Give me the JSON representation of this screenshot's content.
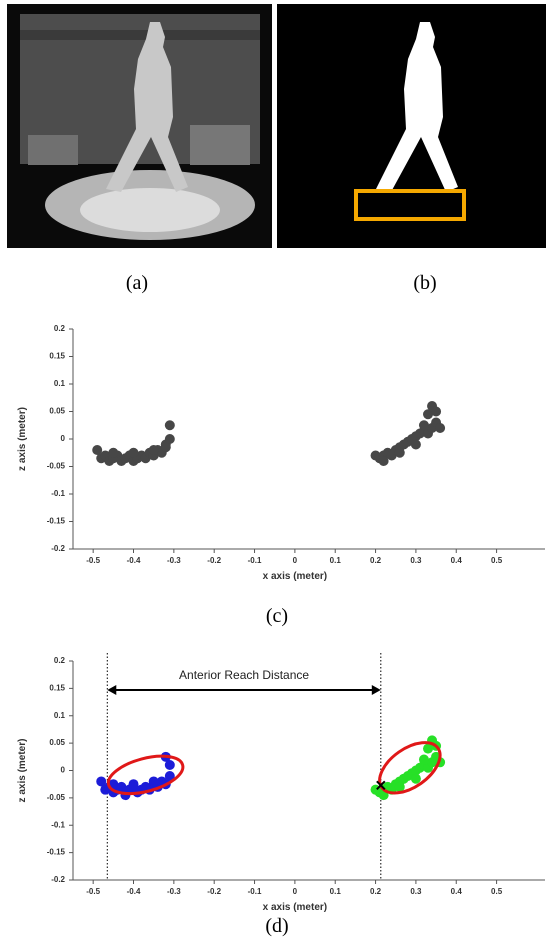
{
  "panels": [
    {
      "caption": "(a)"
    },
    {
      "caption": "(b)"
    }
  ],
  "chart_data": [
    {
      "type": "scatter",
      "caption": "(c)",
      "xlabel": "x axis (meter)",
      "ylabel": "z axis (meter)",
      "xlim": [
        -0.55,
        0.62
      ],
      "ylim": [
        -0.2,
        0.2
      ],
      "xticks": [
        -0.5,
        -0.4,
        -0.3,
        -0.2,
        -0.1,
        0,
        0.1,
        0.2,
        0.3,
        0.4,
        0.5
      ],
      "yticks": [
        0.2,
        0.15,
        0.1,
        0.05,
        0,
        -0.05,
        -0.1,
        -0.15,
        -0.2
      ],
      "grid": false,
      "series": [
        {
          "color": "#474747",
          "x": [
            -0.49,
            -0.48,
            -0.47,
            -0.46,
            -0.45,
            -0.44,
            -0.43,
            -0.42,
            -0.41,
            -0.4,
            -0.39,
            -0.38,
            -0.37,
            -0.36,
            -0.35,
            -0.34,
            -0.33,
            -0.32,
            -0.31,
            -0.31,
            -0.32,
            -0.45,
            -0.4,
            -0.35
          ],
          "values": [
            -0.02,
            -0.035,
            -0.03,
            -0.04,
            -0.035,
            -0.03,
            -0.04,
            -0.035,
            -0.03,
            -0.04,
            -0.035,
            -0.03,
            -0.035,
            -0.025,
            -0.03,
            -0.02,
            -0.025,
            -0.01,
            0,
            0.025,
            -0.015,
            -0.025,
            -0.025,
            -0.02
          ]
        },
        {
          "color": "#474747",
          "x": [
            0.2,
            0.21,
            0.22,
            0.23,
            0.24,
            0.25,
            0.26,
            0.27,
            0.28,
            0.29,
            0.3,
            0.31,
            0.32,
            0.33,
            0.34,
            0.35,
            0.36,
            0.34,
            0.33,
            0.35,
            0.22,
            0.26,
            0.3,
            0.32
          ],
          "values": [
            -0.03,
            -0.035,
            -0.03,
            -0.025,
            -0.03,
            -0.02,
            -0.015,
            -0.01,
            -0.005,
            0,
            0.005,
            0.01,
            0.015,
            0.01,
            0.02,
            0.03,
            0.02,
            0.06,
            0.045,
            0.05,
            -0.04,
            -0.025,
            -0.01,
            0.025
          ]
        }
      ]
    },
    {
      "type": "scatter",
      "caption": "(d)",
      "xlabel": "x axis (meter)",
      "ylabel": "z axis (meter)",
      "xlim": [
        -0.55,
        0.62
      ],
      "ylim": [
        -0.2,
        0.2
      ],
      "xticks": [
        -0.5,
        -0.4,
        -0.3,
        -0.2,
        -0.1,
        0,
        0.1,
        0.2,
        0.3,
        0.4,
        0.5
      ],
      "yticks": [
        0.2,
        0.15,
        0.1,
        0.05,
        0,
        -0.05,
        -0.1,
        -0.15,
        -0.2
      ],
      "grid": false,
      "annotation": "Anterior Reach Distance",
      "vlines": [
        -0.465,
        0.213
      ],
      "series": [
        {
          "color": "#1c1cd8",
          "x": [
            -0.48,
            -0.47,
            -0.46,
            -0.45,
            -0.44,
            -0.43,
            -0.42,
            -0.41,
            -0.4,
            -0.39,
            -0.38,
            -0.37,
            -0.36,
            -0.35,
            -0.34,
            -0.33,
            -0.32,
            -0.31,
            -0.31,
            -0.32,
            -0.45,
            -0.4,
            -0.35,
            -0.42
          ],
          "values": [
            -0.02,
            -0.035,
            -0.03,
            -0.04,
            -0.035,
            -0.03,
            -0.04,
            -0.035,
            -0.03,
            -0.04,
            -0.035,
            -0.03,
            -0.035,
            -0.025,
            -0.03,
            -0.02,
            -0.025,
            -0.01,
            0.01,
            0.025,
            -0.025,
            -0.025,
            -0.02,
            -0.045
          ]
        },
        {
          "color": "#27e027",
          "x": [
            0.2,
            0.21,
            0.22,
            0.23,
            0.24,
            0.25,
            0.26,
            0.27,
            0.28,
            0.29,
            0.3,
            0.31,
            0.32,
            0.33,
            0.34,
            0.35,
            0.36,
            0.34,
            0.33,
            0.35,
            0.22,
            0.26,
            0.3,
            0.32
          ],
          "values": [
            -0.035,
            -0.04,
            -0.035,
            -0.03,
            -0.035,
            -0.025,
            -0.02,
            -0.015,
            -0.01,
            -0.005,
            0,
            0.005,
            0.01,
            0.005,
            0.015,
            0.025,
            0.015,
            0.055,
            0.04,
            0.045,
            -0.045,
            -0.03,
            -0.015,
            0.02
          ]
        }
      ],
      "ellipses": [
        {
          "center": [
            -0.37,
            -0.008
          ],
          "rx": 0.095,
          "ry": 0.03,
          "angle": -15,
          "color": "#e01818"
        },
        {
          "center": [
            0.285,
            0.005
          ],
          "rx": 0.085,
          "ry": 0.035,
          "angle": -35,
          "color": "#e01818"
        }
      ],
      "markers": [
        {
          "x": 0.213,
          "y": -0.027
        }
      ]
    }
  ]
}
